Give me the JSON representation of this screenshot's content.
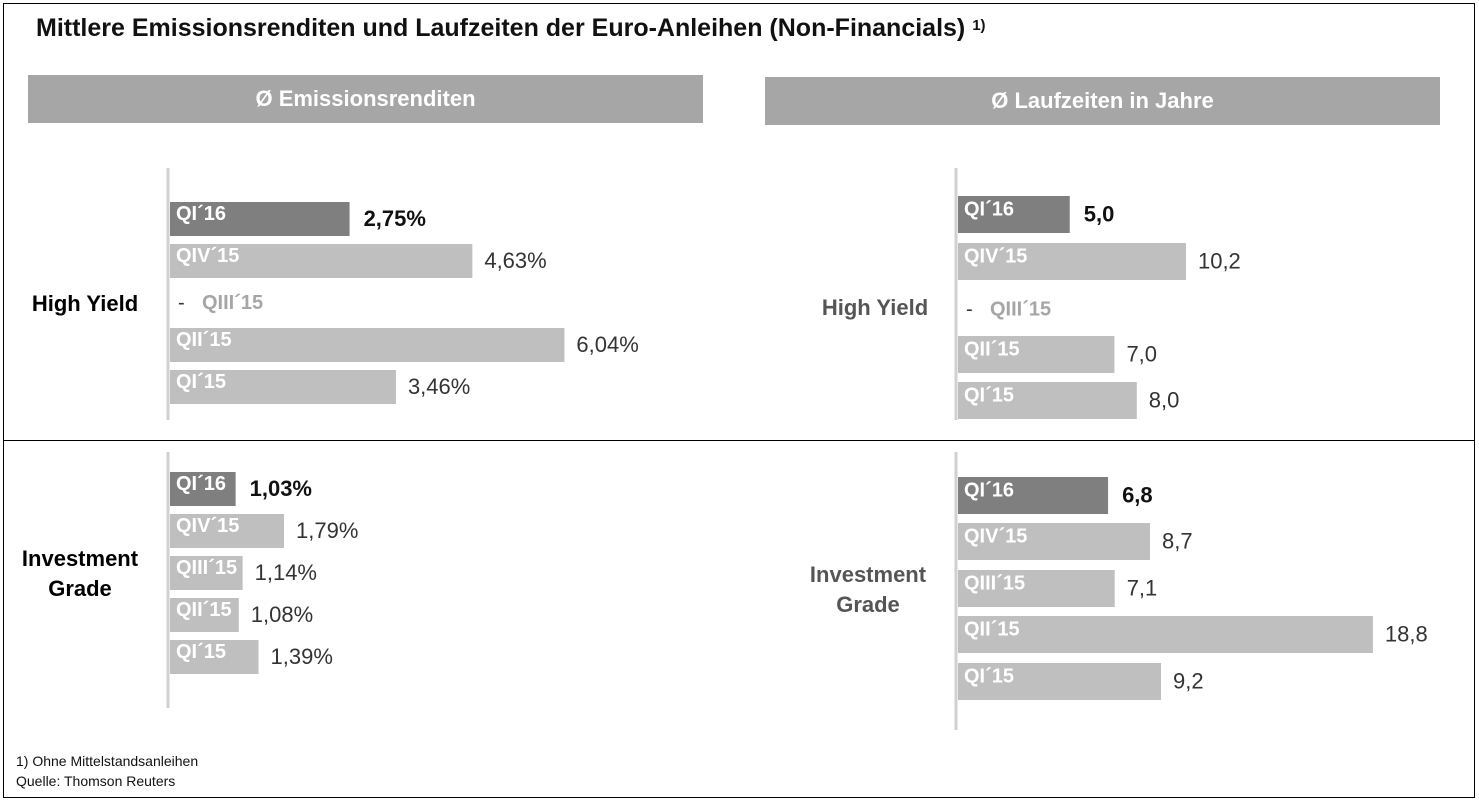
{
  "title": "Mittlere Emissionsrenditen und Laufzeiten der Euro-Anleihen (Non-Financials)",
  "title_superscript": "1)",
  "headers": {
    "left": "Ø Emissionsrenditen",
    "right": "Ø Laufzeiten in Jahre"
  },
  "row_labels": {
    "high_yield": "High Yield",
    "investment_grade": "Investment\nGrade"
  },
  "footnotes": {
    "note1": "1) Ohne Mittelstandsanleihen",
    "source": "Quelle:  Thomson  Reuters"
  },
  "colors": {
    "highlight_bar": "#7f7f7f",
    "bar": "#bfbfbf",
    "header_bg": "#a6a6a6",
    "axis": "#d0d0d0",
    "value_text": "#333333"
  },
  "chart_data": [
    {
      "type": "bar",
      "orientation": "horizontal",
      "panel": "High Yield – Ø Emissionsrenditen",
      "categories": [
        "QI´16",
        "QIV´15",
        "QIII´15",
        "QII´15",
        "QI´15"
      ],
      "values": [
        2.75,
        4.63,
        null,
        6.04,
        3.46
      ],
      "labels": [
        "2,75%",
        "4,63%",
        "-",
        "6,04%",
        "3,46%"
      ],
      "highlight_index": 0
    },
    {
      "type": "bar",
      "orientation": "horizontal",
      "panel": "High Yield – Ø Laufzeiten in Jahre",
      "categories": [
        "QI´16",
        "QIV´15",
        "QIII´15",
        "QII´15",
        "QI´15"
      ],
      "values": [
        5.0,
        10.2,
        null,
        7.0,
        8.0
      ],
      "labels": [
        "5,0",
        "10,2",
        "-",
        "7,0",
        "8,0"
      ],
      "highlight_index": 0
    },
    {
      "type": "bar",
      "orientation": "horizontal",
      "panel": "Investment Grade – Ø Emissionsrenditen",
      "categories": [
        "QI´16",
        "QIV´15",
        "QIII´15",
        "QII´15",
        "QI´15"
      ],
      "values": [
        1.03,
        1.79,
        1.14,
        1.08,
        1.39
      ],
      "labels": [
        "1,03%",
        "1,79%",
        "1,14%",
        "1,08%",
        "1,39%"
      ],
      "highlight_index": 0
    },
    {
      "type": "bar",
      "orientation": "horizontal",
      "panel": "Investment Grade – Ø Laufzeiten in Jahre",
      "categories": [
        "QI´16",
        "QIV´15",
        "QIII´15",
        "QII´15",
        "QI´15"
      ],
      "values": [
        6.8,
        8.7,
        7.1,
        18.8,
        9.2
      ],
      "labels": [
        "6,8",
        "8,7",
        "7,1",
        "18,8",
        "9,2"
      ],
      "highlight_index": 0
    }
  ]
}
